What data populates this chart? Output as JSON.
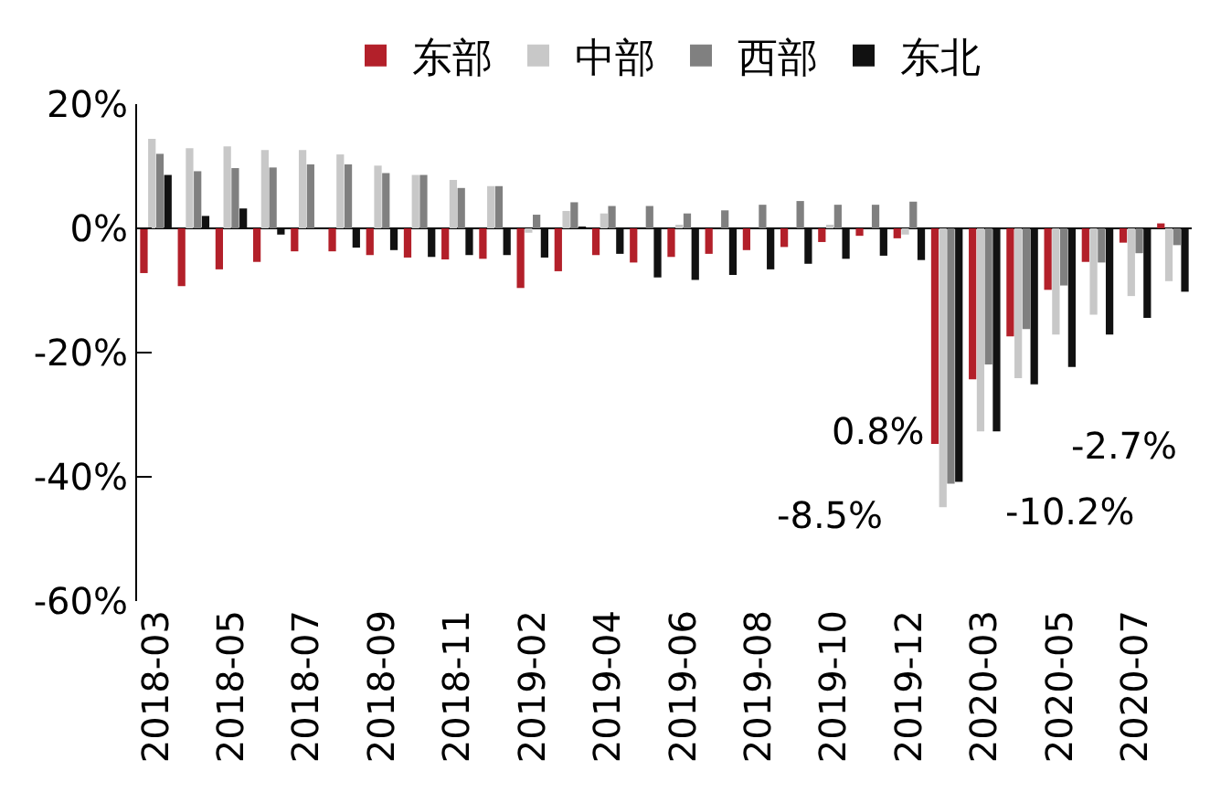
{
  "chart_data": {
    "type": "bar",
    "categories": [
      "2018-03",
      null,
      "2018-05",
      null,
      "2018-07",
      null,
      "2018-09",
      null,
      "2018-11",
      null,
      "2019-02",
      null,
      "2019-04",
      null,
      "2019-06",
      null,
      "2019-08",
      null,
      "2019-10",
      null,
      "2019-12",
      null,
      "2020-03",
      null,
      "2020-05",
      null,
      "2020-07",
      null
    ],
    "series": [
      {
        "name": "东部",
        "color": "#b3202a",
        "values": [
          -7.2,
          -9.3,
          -6.6,
          -5.4,
          -3.7,
          -3.7,
          -4.3,
          -4.7,
          -5.0,
          -4.9,
          -9.6,
          -6.9,
          -4.3,
          -5.5,
          -4.6,
          -4.1,
          -3.5,
          -3.0,
          -2.2,
          -1.2,
          -1.6,
          -34.7,
          -24.3,
          -17.4,
          -9.9,
          -5.4,
          -2.3,
          0.8
        ]
      },
      {
        "name": "中部",
        "color": "#c8c8c8",
        "values": [
          14.4,
          12.9,
          13.2,
          12.6,
          12.6,
          11.9,
          10.1,
          8.6,
          7.8,
          6.8,
          -0.7,
          2.8,
          2.4,
          0,
          0.5,
          0,
          0,
          0,
          0.5,
          0,
          -1.0,
          -44.9,
          -32.7,
          -24.1,
          -17.1,
          -13.9,
          -10.9,
          -8.5
        ]
      },
      {
        "name": "西部",
        "color": "#808080",
        "values": [
          12.0,
          9.2,
          9.7,
          9.8,
          10.3,
          10.3,
          8.9,
          8.6,
          6.5,
          6.8,
          2.2,
          4.2,
          3.6,
          3.6,
          2.4,
          2.9,
          3.8,
          4.4,
          3.8,
          3.8,
          4.3,
          -41.1,
          -21.9,
          -16.2,
          -9.2,
          -5.5,
          -4.0,
          -2.7
        ]
      },
      {
        "name": "东北",
        "color": "#111111",
        "values": [
          8.6,
          2.0,
          3.2,
          -1.0,
          0,
          -3.1,
          -3.5,
          -4.6,
          -4.3,
          -4.3,
          -4.7,
          0.2,
          -4.1,
          -7.9,
          -8.3,
          -7.5,
          -6.6,
          -5.7,
          -4.9,
          -4.4,
          -5.1,
          -40.8,
          -32.7,
          -25.1,
          -22.3,
          -17.1,
          -14.4,
          -10.2
        ]
      }
    ],
    "ylim": [
      -60,
      20
    ],
    "yticks": [
      {
        "value": 20,
        "label": "20%"
      },
      {
        "value": 0,
        "label": "0%"
      },
      {
        "value": -20,
        "label": "-20%"
      },
      {
        "value": -40,
        "label": "-40%"
      },
      {
        "value": -60,
        "label": "-60%"
      }
    ],
    "legend": "top",
    "annotations": [
      "0.8%",
      "-8.5%",
      "-2.7%",
      "-10.2%"
    ]
  }
}
